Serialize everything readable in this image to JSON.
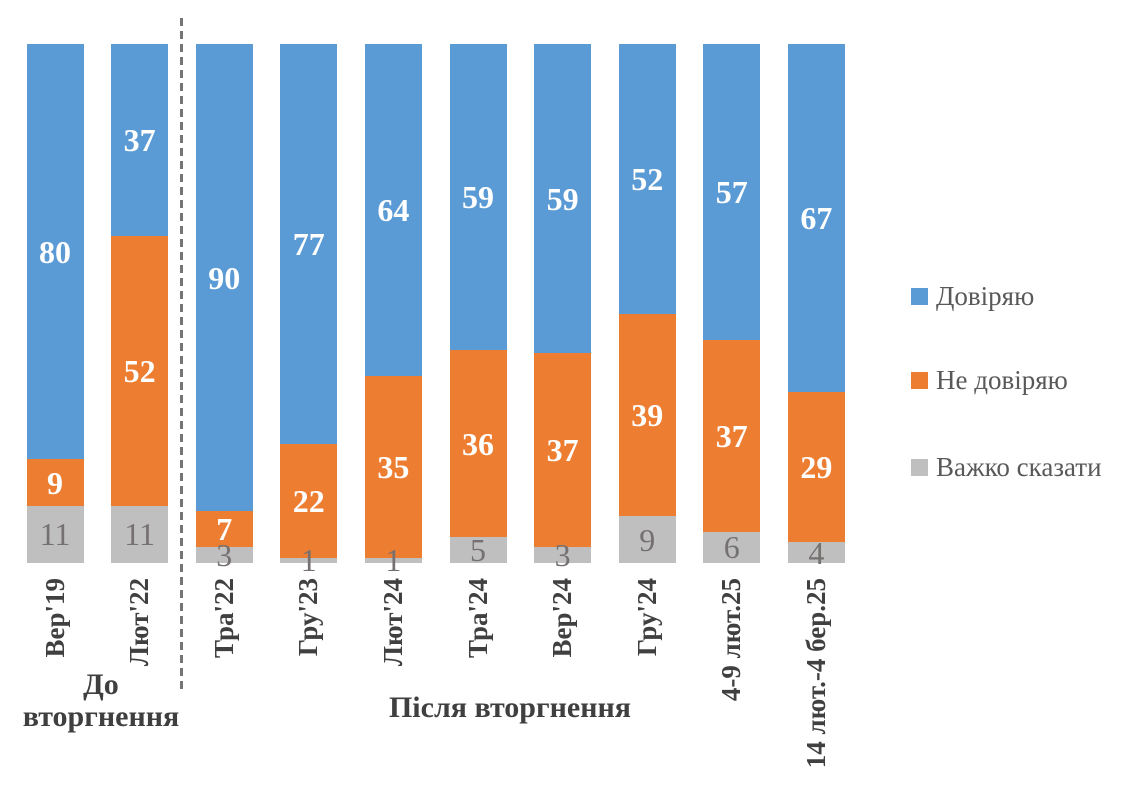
{
  "chart_data": {
    "type": "bar",
    "subtype": "stacked-100",
    "orientation": "vertical",
    "categories": [
      "Вер'19",
      "Лют'22",
      "Тра'22",
      "Гру'23",
      "Лют'24",
      "Тра'24",
      "Вер'24",
      "Гру'24",
      "4-9 лют.25",
      "14 лют.-4 бер.25"
    ],
    "series": [
      {
        "key": "trust",
        "name": "Довіряю",
        "color": "#5B9BD5",
        "label_color": "#FFFFFF",
        "values": [
          80,
          37,
          90,
          77,
          64,
          59,
          59,
          52,
          57,
          67
        ]
      },
      {
        "key": "distrust",
        "name": "Не довіряю",
        "color": "#ED7D31",
        "label_color": "#FFFFFF",
        "values": [
          9,
          52,
          7,
          22,
          35,
          36,
          37,
          39,
          37,
          29
        ]
      },
      {
        "key": "hard-to-say",
        "name": "Важко сказати",
        "color": "#BFBFBF",
        "label_color": "#767171",
        "values": [
          11,
          11,
          3,
          1,
          1,
          5,
          3,
          9,
          6,
          4
        ]
      }
    ],
    "groups": [
      {
        "label": "До вторгнення",
        "category_indexes": [
          0,
          1
        ]
      },
      {
        "label": "Після вторгнення",
        "category_indexes": [
          2,
          3,
          4,
          5,
          6,
          7,
          8,
          9
        ]
      }
    ],
    "divider": {
      "style": "dashed",
      "between_categories": [
        1,
        2
      ],
      "color": "#757575"
    },
    "value_labels": "inside-center",
    "legend_position": "right",
    "axis_label_rotation_deg": 90,
    "ylim": [
      0,
      100
    ],
    "grid": false,
    "title": ""
  }
}
